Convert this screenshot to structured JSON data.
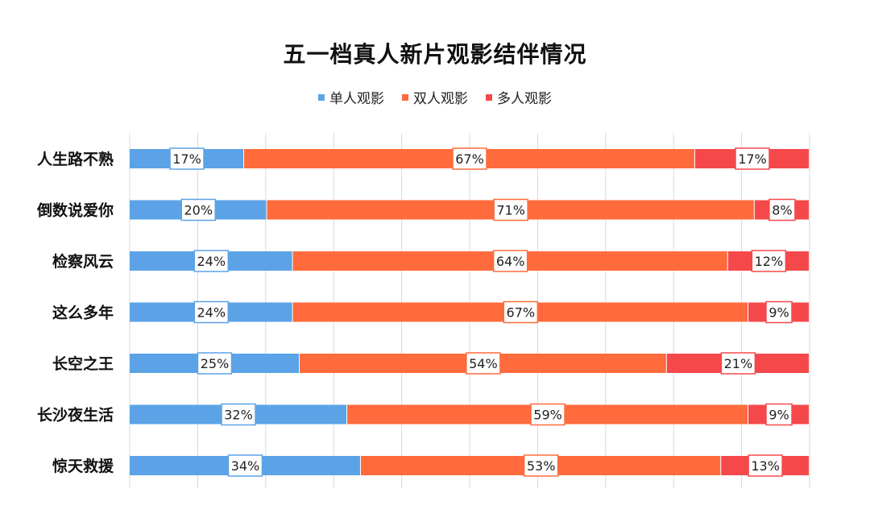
{
  "chart_data": {
    "type": "bar",
    "orientation": "horizontal",
    "stacked": true,
    "title": "五一档真人新片观影结伴情况",
    "categories": [
      "人生路不熟",
      "倒数说爱你",
      "检察风云",
      "这么多年",
      "长空之王",
      "长沙夜生活",
      "惊天救援"
    ],
    "series": [
      {
        "name": "单人观影",
        "color": "#5BA3E6",
        "values": [
          17,
          20,
          24,
          24,
          25,
          32,
          34
        ]
      },
      {
        "name": "双人观影",
        "color": "#FF6B3D",
        "values": [
          67,
          71,
          64,
          67,
          54,
          59,
          53
        ]
      },
      {
        "name": "多人观影",
        "color": "#F5484B",
        "values": [
          17,
          8,
          12,
          9,
          21,
          9,
          13
        ]
      }
    ],
    "value_suffix": "%",
    "legend_position": "top",
    "grid": "vertical",
    "data_labels": true
  }
}
